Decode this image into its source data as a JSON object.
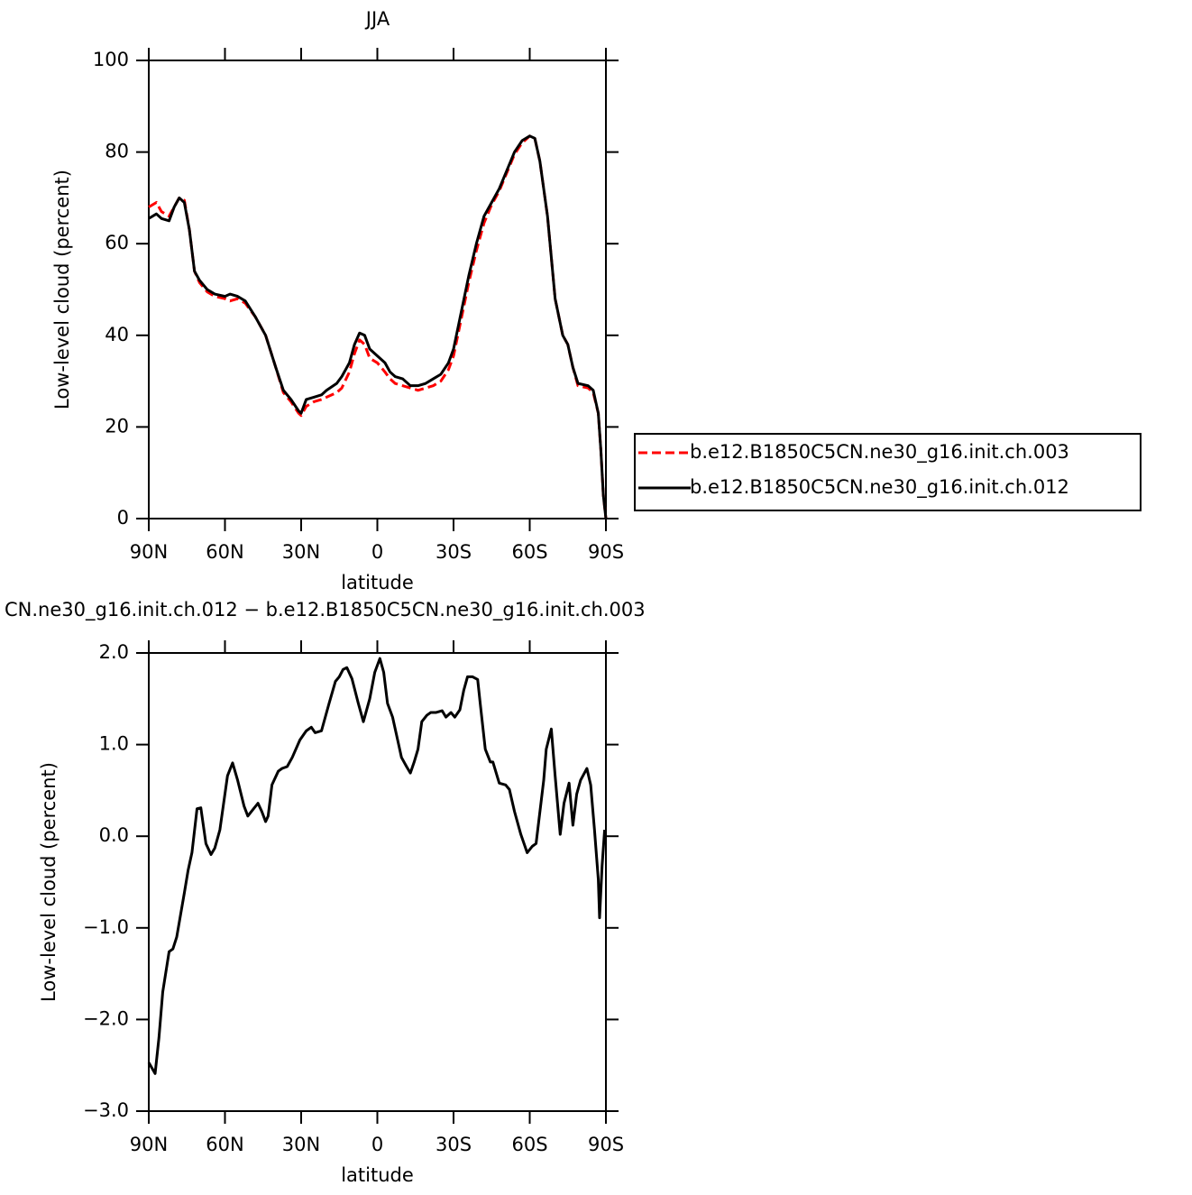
{
  "chart_data": [
    {
      "type": "line",
      "title": "JJA",
      "xlabel": "latitude",
      "ylabel": "Low-level cloud (percent)",
      "x": [
        90,
        87,
        85,
        82,
        80,
        78,
        76,
        74,
        72,
        70,
        67,
        64,
        60,
        58,
        55,
        52,
        48,
        44,
        40,
        37,
        34,
        31,
        30,
        28,
        25,
        22,
        20,
        16,
        14,
        11,
        9,
        7,
        5,
        3,
        0,
        -3,
        -5,
        -7,
        -10,
        -13,
        -16,
        -19,
        -22,
        -25,
        -28,
        -30,
        -33,
        -36,
        -39,
        -42,
        -45,
        -48,
        -51,
        -54,
        -57,
        -60,
        -62,
        -64,
        -67,
        -70,
        -73,
        -75,
        -77,
        -79,
        -83,
        -85,
        -87,
        -88,
        -89,
        -90
      ],
      "series": [
        {
          "name": "b.e12.B1850C5CN.ne30_g16.init.ch.003",
          "color": "#ff0000",
          "linestyle": "dashed",
          "values": [
            68,
            69,
            67,
            66,
            68,
            70,
            69.5,
            63,
            54,
            51.5,
            49.5,
            48.5,
            48,
            47.5,
            48,
            47,
            44,
            40,
            33,
            27.5,
            25.5,
            23,
            22.5,
            24.5,
            25.5,
            26,
            26.5,
            27.5,
            28.5,
            32,
            36,
            39,
            38,
            35,
            34,
            32,
            30.5,
            29.5,
            29,
            28.5,
            28,
            28.5,
            29,
            30,
            32.5,
            35.5,
            43.5,
            51.5,
            58.5,
            64.5,
            68.5,
            71.5,
            75.5,
            79.5,
            82,
            83.5,
            83,
            78,
            66,
            48,
            40,
            38,
            33,
            29,
            28.5,
            27.5,
            23,
            15,
            5,
            0
          ]
        },
        {
          "name": "b.e12.B1850C5CN.ne30_g16.init.ch.012",
          "color": "#000000",
          "linestyle": "solid",
          "values": [
            65.5,
            66.5,
            65.5,
            65,
            68,
            70,
            69,
            63,
            54,
            52,
            50,
            49,
            48.5,
            49,
            48.5,
            47.5,
            44,
            40,
            33,
            28,
            26,
            23.5,
            23,
            26,
            26.5,
            27,
            28,
            29.5,
            31,
            34,
            38,
            40.5,
            40,
            37,
            35.5,
            34,
            32,
            31,
            30.5,
            29,
            29,
            29.5,
            30.5,
            31.5,
            34,
            37,
            45,
            53,
            60,
            66,
            69,
            72,
            76,
            80,
            82.5,
            83.5,
            83,
            78,
            66,
            48,
            40,
            38,
            33,
            29.5,
            29,
            28,
            23,
            15,
            5,
            0
          ]
        }
      ],
      "xlim": [
        90,
        -90
      ],
      "xticks": [
        {
          "value": 90,
          "label": "90N"
        },
        {
          "value": 60,
          "label": "60N"
        },
        {
          "value": 30,
          "label": "30N"
        },
        0,
        {
          "value": -30,
          "label": "30S"
        },
        {
          "value": -60,
          "label": "60S"
        },
        {
          "value": -90,
          "label": "90S"
        }
      ],
      "ylim": [
        0,
        100
      ],
      "yticks": [
        0,
        20,
        40,
        60,
        80,
        100
      ],
      "legend": "right"
    },
    {
      "type": "line",
      "title": "CN.ne30_g16.init.ch.012 − b.e12.B1850C5CN.ne30_g16.init.ch.003",
      "xlabel": "latitude",
      "ylabel": "Low-level cloud (percent)",
      "x": [
        90,
        87.5,
        86,
        84.5,
        82,
        80.5,
        79,
        76,
        74.5,
        73,
        71,
        69.5,
        67.5,
        65.5,
        64,
        62,
        59,
        57,
        55,
        52.5,
        51,
        49,
        47,
        45.5,
        44,
        43,
        41.5,
        39,
        37.5,
        35.5,
        33.5,
        30.5,
        28,
        26,
        24.5,
        22,
        19,
        16.5,
        15,
        13.5,
        12,
        10,
        7.5,
        5.5,
        3,
        1,
        -1,
        -2.5,
        -4,
        -6,
        -8,
        -9.5,
        -11.5,
        -13,
        -14.5,
        -16,
        -17.5,
        -19.5,
        -21,
        -23,
        -25.5,
        -27,
        -29,
        -30.5,
        -32.5,
        -34,
        -35.5,
        -37.5,
        -39.5,
        -40.5,
        -42.5,
        -44.5,
        -45.5,
        -48,
        -50.5,
        -52,
        -54,
        -56.5,
        -59,
        -61,
        -62.5,
        -63.5,
        -65.5,
        -66.5,
        -68.5,
        -70,
        -72,
        -73.5,
        -75.5,
        -77,
        -78.5,
        -80,
        -82.5,
        -84,
        -85.5,
        -87,
        -87.5,
        -88.5,
        -89.5
      ],
      "series": [
        {
          "color": "#000000",
          "linestyle": "solid",
          "values": [
            -2.47,
            -2.59,
            -2.2,
            -1.7,
            -1.26,
            -1.23,
            -1.1,
            -0.62,
            -0.37,
            -0.18,
            0.3,
            0.31,
            -0.08,
            -0.2,
            -0.13,
            0.07,
            0.66,
            0.8,
            0.61,
            0.33,
            0.22,
            0.29,
            0.36,
            0.27,
            0.16,
            0.22,
            0.56,
            0.71,
            0.74,
            0.76,
            0.86,
            1.05,
            1.15,
            1.19,
            1.13,
            1.15,
            1.45,
            1.69,
            1.74,
            1.82,
            1.84,
            1.72,
            1.45,
            1.25,
            1.5,
            1.79,
            1.94,
            1.79,
            1.45,
            1.3,
            1.05,
            0.86,
            0.76,
            0.69,
            0.81,
            0.95,
            1.25,
            1.32,
            1.35,
            1.35,
            1.37,
            1.3,
            1.35,
            1.3,
            1.38,
            1.59,
            1.74,
            1.74,
            1.71,
            1.45,
            0.95,
            0.81,
            0.81,
            0.58,
            0.56,
            0.51,
            0.27,
            0.02,
            -0.18,
            -0.11,
            -0.08,
            0.15,
            0.61,
            0.95,
            1.17,
            0.66,
            0.02,
            0.36,
            0.58,
            0.12,
            0.46,
            0.61,
            0.74,
            0.56,
            0.07,
            -0.47,
            -0.89,
            -0.32,
            0.07
          ]
        }
      ],
      "xlim": [
        90,
        -90
      ],
      "xticks": [
        {
          "value": 90,
          "label": "90N"
        },
        {
          "value": 60,
          "label": "60N"
        },
        {
          "value": 30,
          "label": "30N"
        },
        0,
        {
          "value": -30,
          "label": "30S"
        },
        {
          "value": -60,
          "label": "60S"
        },
        {
          "value": -90,
          "label": "90S"
        }
      ],
      "ylim": [
        -3,
        2
      ],
      "yticks": [
        {
          "value": -3,
          "label": "−3.0"
        },
        {
          "value": -2,
          "label": "−2.0"
        },
        {
          "value": -1,
          "label": "−1.0"
        },
        {
          "value": 0,
          "label": "0.0"
        },
        {
          "value": 1,
          "label": "1.0"
        },
        {
          "value": 2,
          "label": "2.0"
        }
      ]
    }
  ]
}
